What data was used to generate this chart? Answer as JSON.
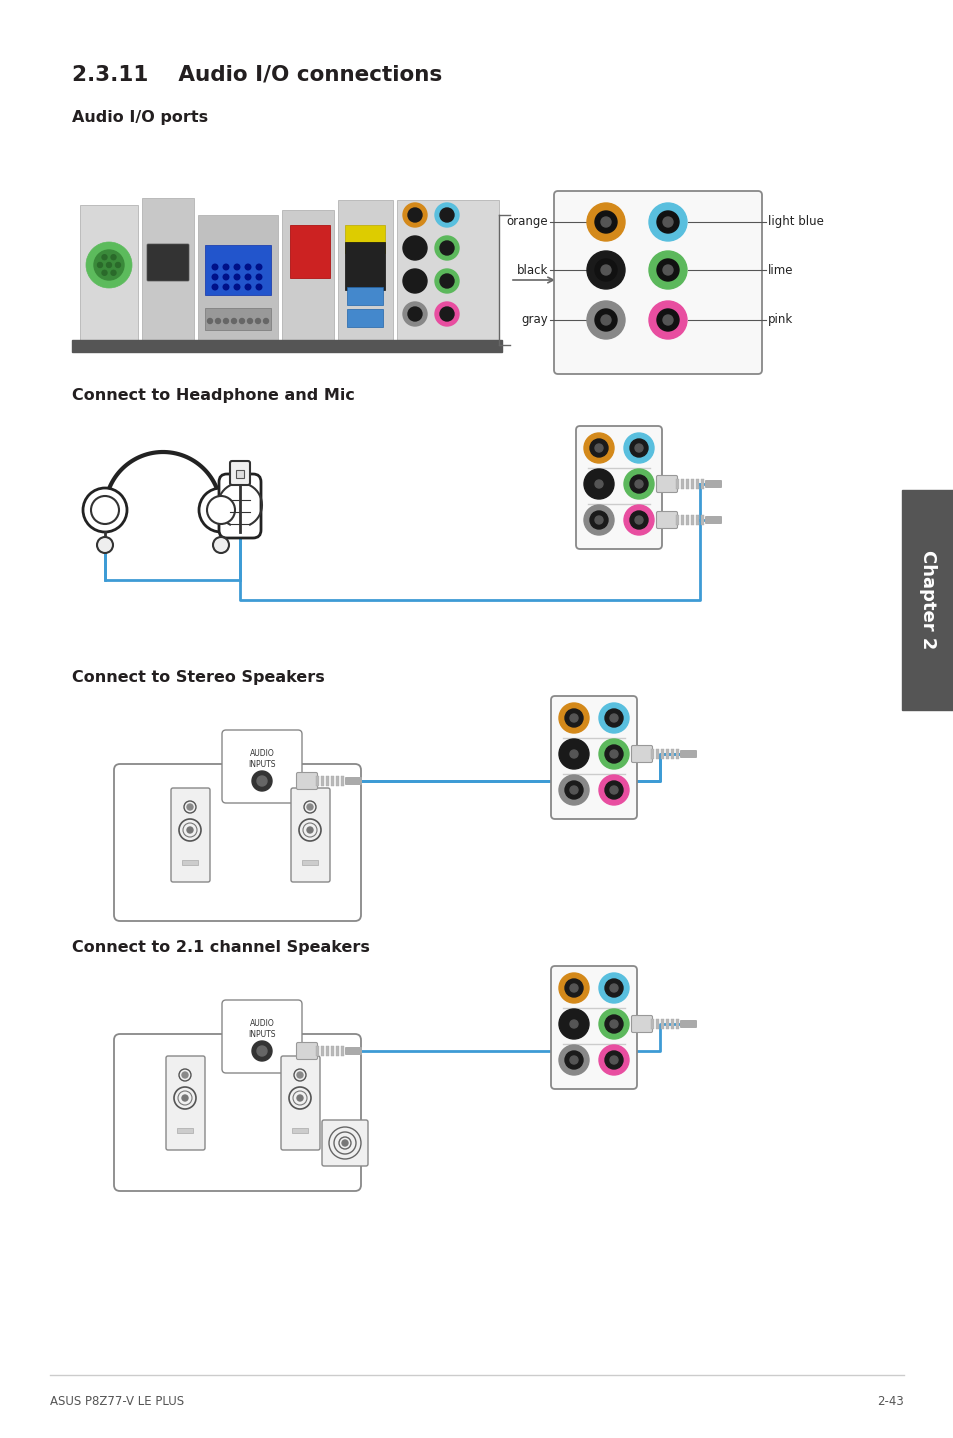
{
  "title_section": "2.3.11    Audio I/O connections",
  "subtitle1": "Audio I/O ports",
  "subtitle2": "Connect to Headphone and Mic",
  "subtitle3": "Connect to Stereo Speakers",
  "subtitle4": "Connect to 2.1 channel Speakers",
  "footer_left": "ASUS P8Z77-V LE PLUS",
  "footer_right": "2-43",
  "chapter_label": "Chapter 2",
  "port_labels_left": [
    "orange",
    "black",
    "gray"
  ],
  "port_labels_right": [
    "light blue",
    "lime",
    "pink"
  ],
  "bg_color": "#ffffff",
  "text_color": "#231f20",
  "title_color": "#231f20",
  "subtitle_color": "#231f20",
  "blue_line_color": "#3d9bd5",
  "port_colors_left": [
    "#d4891a",
    "#1a1a1a",
    "#888888"
  ],
  "port_colors_right": [
    "#59bfde",
    "#5cb85c",
    "#e84ea0"
  ],
  "connector_color": "#c8c8c8",
  "box_border": "#888888",
  "speaker_color": "#444444"
}
